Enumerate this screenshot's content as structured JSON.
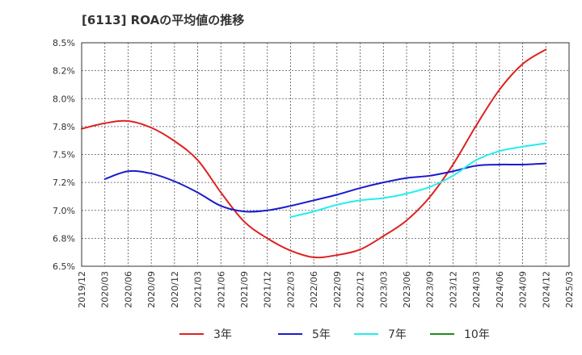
{
  "title": "[6113]  ROAの平均値の推移",
  "chart_data": {
    "type": "line",
    "title": "[6113]  ROAの平均値の推移",
    "xlabel": "",
    "ylabel": "",
    "ylim": [
      6.5,
      8.5
    ],
    "yticks": [
      "8.5%",
      "8.2%",
      "8.0%",
      "7.8%",
      "7.5%",
      "7.2%",
      "7.0%",
      "6.8%",
      "6.5%"
    ],
    "xticks": [
      "2019/12",
      "2020/03",
      "2020/06",
      "2020/09",
      "2020/12",
      "2021/03",
      "2021/06",
      "2021/09",
      "2021/12",
      "2022/03",
      "2022/06",
      "2022/09",
      "2022/12",
      "2023/03",
      "2023/06",
      "2023/09",
      "2023/12",
      "2024/03",
      "2024/06",
      "2024/09",
      "2024/12",
      "2025/03"
    ],
    "grid": true,
    "legend_position": "bottom",
    "series": [
      {
        "name": "3年",
        "color": "#dd2222",
        "x": [
          "2019/12",
          "2020/03",
          "2020/06",
          "2020/09",
          "2020/12",
          "2021/03",
          "2021/06",
          "2021/09",
          "2021/12",
          "2022/03",
          "2022/06",
          "2022/09",
          "2022/12",
          "2023/03",
          "2023/06",
          "2023/09",
          "2023/12",
          "2024/03",
          "2024/06",
          "2024/09",
          "2024/12"
        ],
        "values": [
          7.73,
          7.78,
          7.8,
          7.74,
          7.62,
          7.45,
          7.16,
          6.9,
          6.75,
          6.64,
          6.58,
          6.6,
          6.65,
          6.77,
          6.91,
          7.12,
          7.41,
          7.76,
          8.08,
          8.31,
          8.44
        ]
      },
      {
        "name": "5年",
        "color": "#1a1acc",
        "x": [
          "2020/03",
          "2020/06",
          "2020/09",
          "2020/12",
          "2021/03",
          "2021/06",
          "2021/09",
          "2021/12",
          "2022/03",
          "2022/06",
          "2022/09",
          "2022/12",
          "2023/03",
          "2023/06",
          "2023/09",
          "2023/12",
          "2024/03",
          "2024/06",
          "2024/09",
          "2024/12"
        ],
        "values": [
          7.28,
          7.35,
          7.33,
          7.26,
          7.16,
          7.04,
          6.99,
          7.0,
          7.04,
          7.09,
          7.14,
          7.2,
          7.25,
          7.29,
          7.31,
          7.35,
          7.4,
          7.41,
          7.41,
          7.42
        ]
      },
      {
        "name": "7年",
        "color": "#22eeee",
        "x": [
          "2022/03",
          "2022/06",
          "2022/09",
          "2022/12",
          "2023/03",
          "2023/06",
          "2023/09",
          "2023/12",
          "2024/03",
          "2024/06",
          "2024/09",
          "2024/12"
        ],
        "values": [
          6.94,
          6.99,
          7.05,
          7.09,
          7.11,
          7.15,
          7.21,
          7.31,
          7.45,
          7.53,
          7.57,
          7.6
        ]
      },
      {
        "name": "10年",
        "color": "#228822",
        "x": [],
        "values": []
      }
    ]
  }
}
